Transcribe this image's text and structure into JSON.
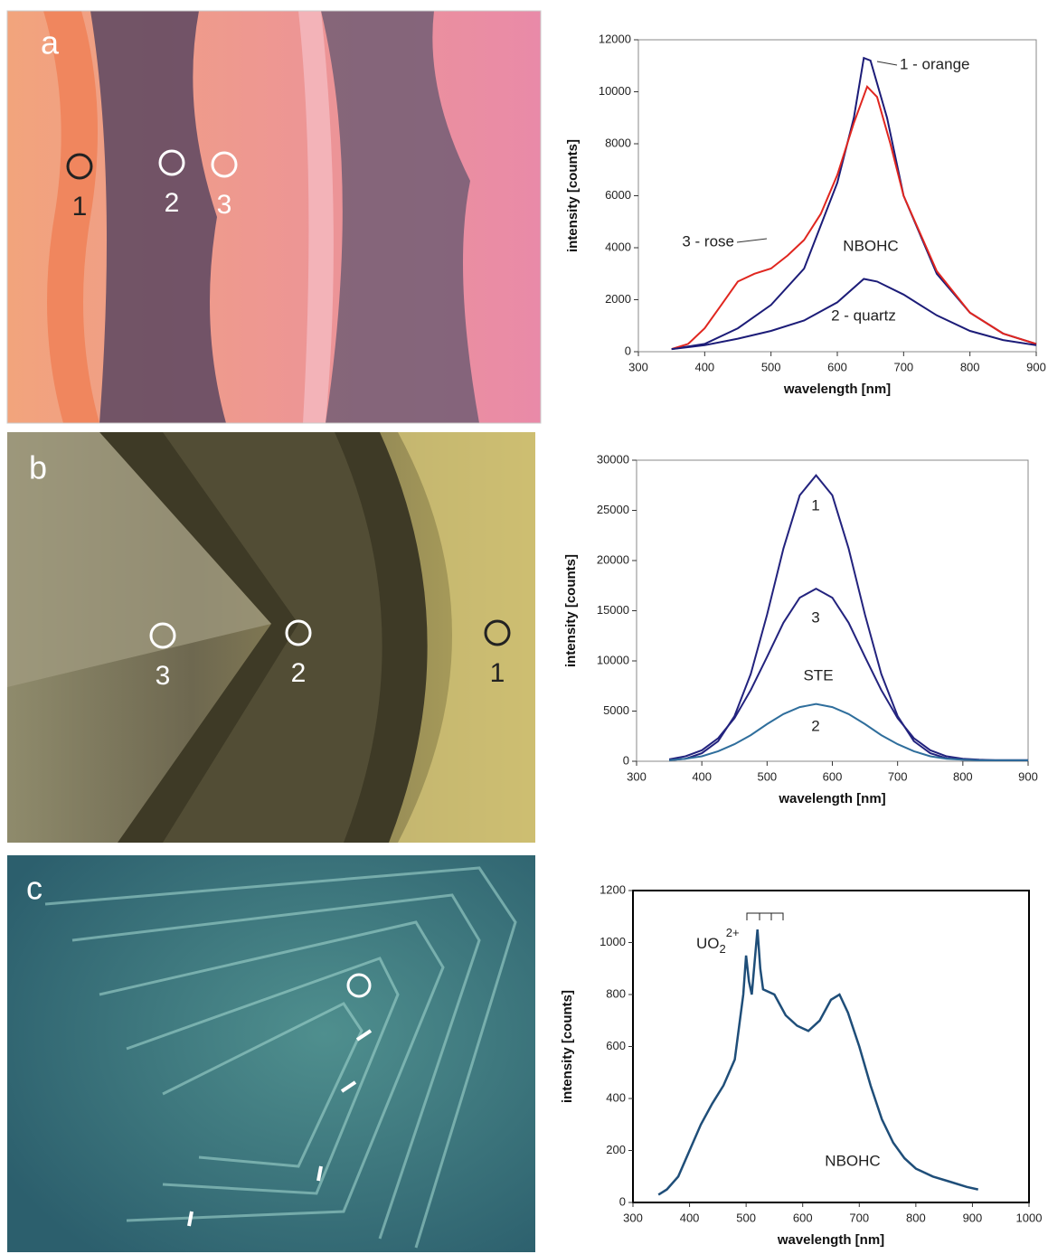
{
  "photos": [
    {
      "label": "a",
      "markers": [
        "1",
        "2",
        "3"
      ]
    },
    {
      "label": "b",
      "markers": [
        "3",
        "2",
        "1"
      ]
    },
    {
      "label": "c",
      "markers": []
    }
  ],
  "chart_data": [
    {
      "type": "line",
      "xlabel": "wavelength [nm]",
      "ylabel": "intensity [counts]",
      "xlim": [
        300,
        900
      ],
      "xticks": [
        300,
        400,
        500,
        600,
        700,
        800,
        900
      ],
      "ylim": [
        0,
        12000
      ],
      "yticks": [
        0,
        2000,
        4000,
        6000,
        8000,
        10000,
        12000
      ],
      "annotations": [
        "NBOHC"
      ],
      "series": [
        {
          "name": "1 - orange",
          "color": "#1c1c78",
          "x": [
            350,
            400,
            450,
            500,
            550,
            600,
            625,
            640,
            650,
            675,
            700,
            750,
            800,
            850,
            900
          ],
          "values": [
            100,
            300,
            900,
            1800,
            3200,
            6500,
            9000,
            11300,
            11200,
            9000,
            6000,
            3000,
            1500,
            700,
            300
          ]
        },
        {
          "name": "3 - rose",
          "color": "#e0261f",
          "x": [
            350,
            375,
            400,
            425,
            450,
            475,
            500,
            525,
            550,
            575,
            600,
            625,
            645,
            660,
            680,
            700,
            750,
            800,
            850,
            900
          ],
          "values": [
            100,
            300,
            900,
            1800,
            2700,
            3000,
            3200,
            3700,
            4300,
            5300,
            6800,
            8800,
            10200,
            9800,
            8000,
            6000,
            3100,
            1500,
            700,
            300
          ]
        },
        {
          "name": "2 - quartz",
          "color": "#1c1c78",
          "x": [
            350,
            400,
            450,
            500,
            550,
            600,
            640,
            660,
            700,
            750,
            800,
            850,
            900
          ],
          "values": [
            100,
            250,
            500,
            800,
            1200,
            1900,
            2800,
            2700,
            2200,
            1400,
            800,
            450,
            250
          ]
        }
      ]
    },
    {
      "type": "line",
      "xlabel": "wavelength [nm]",
      "ylabel": "intensity [counts]",
      "xlim": [
        300,
        900
      ],
      "xticks": [
        300,
        400,
        500,
        600,
        700,
        800,
        900
      ],
      "ylim": [
        0,
        30000
      ],
      "yticks": [
        0,
        5000,
        10000,
        15000,
        20000,
        25000,
        30000
      ],
      "annotations": [
        "STE"
      ],
      "series": [
        {
          "name": "1",
          "color": "#23237e",
          "x": [
            350,
            375,
            400,
            425,
            450,
            475,
            500,
            525,
            550,
            575,
            600,
            625,
            650,
            675,
            700,
            725,
            750,
            775,
            800,
            825,
            850,
            875,
            900
          ],
          "values": [
            100,
            250,
            800,
            2000,
            4500,
            8700,
            14600,
            21200,
            26500,
            28500,
            26500,
            21200,
            14600,
            8700,
            4500,
            2000,
            800,
            300,
            150,
            100,
            100,
            100,
            100
          ]
        },
        {
          "name": "3",
          "color": "#23237e",
          "x": [
            350,
            375,
            400,
            425,
            450,
            475,
            500,
            525,
            550,
            575,
            600,
            625,
            650,
            675,
            700,
            725,
            750,
            775,
            800,
            825,
            850,
            875,
            900
          ],
          "values": [
            200,
            500,
            1100,
            2300,
            4300,
            7100,
            10400,
            13800,
            16300,
            17200,
            16300,
            13800,
            10400,
            7100,
            4300,
            2300,
            1100,
            500,
            250,
            150,
            100,
            100,
            100
          ]
        },
        {
          "name": "2",
          "color": "#2f6e9c",
          "x": [
            350,
            375,
            400,
            425,
            450,
            475,
            500,
            525,
            550,
            575,
            600,
            625,
            650,
            675,
            700,
            725,
            750,
            775,
            800,
            825,
            850,
            875,
            900
          ],
          "values": [
            100,
            250,
            500,
            1000,
            1700,
            2600,
            3700,
            4700,
            5400,
            5700,
            5400,
            4700,
            3700,
            2600,
            1700,
            1000,
            500,
            250,
            150,
            100,
            100,
            100,
            100
          ]
        }
      ]
    },
    {
      "type": "line",
      "xlabel": "wavelength [nm]",
      "ylabel": "intensity [counts]",
      "xlim": [
        300,
        1000
      ],
      "xticks": [
        300,
        400,
        500,
        600,
        700,
        800,
        900,
        1000
      ],
      "ylim": [
        0,
        1200
      ],
      "yticks": [
        0,
        200,
        400,
        600,
        800,
        1000,
        1200
      ],
      "annotations": [
        "NBOHC"
      ],
      "ion": {
        "base": "UO",
        "sub": "2",
        "sup": "2+"
      },
      "series": [
        {
          "name": "",
          "color": "#1f4e79",
          "x": [
            345,
            360,
            380,
            400,
            420,
            440,
            460,
            480,
            495,
            500,
            505,
            510,
            520,
            525,
            530,
            550,
            570,
            590,
            610,
            630,
            650,
            665,
            680,
            700,
            720,
            740,
            760,
            780,
            800,
            830,
            860,
            890,
            910
          ],
          "values": [
            30,
            50,
            100,
            200,
            300,
            380,
            450,
            550,
            800,
            950,
            850,
            800,
            1050,
            900,
            820,
            800,
            720,
            680,
            660,
            700,
            780,
            800,
            730,
            600,
            450,
            320,
            230,
            170,
            130,
            100,
            80,
            60,
            50
          ]
        }
      ]
    }
  ]
}
